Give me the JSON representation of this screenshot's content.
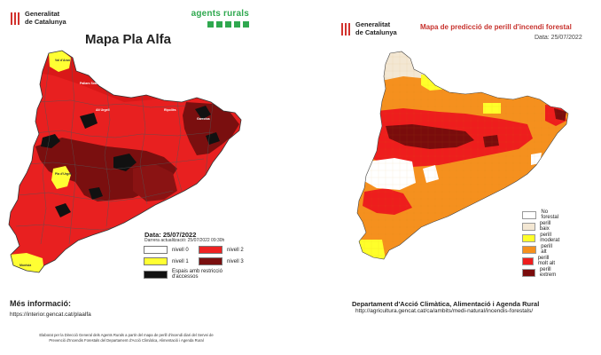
{
  "left": {
    "logo": {
      "line1": "Generalitat",
      "line2": "de Catalunya"
    },
    "agents_rurals": "agents rurals",
    "title": "Mapa Pla Alfa",
    "date": "Data: 25/07/2022",
    "updated": "Darrera actualització: 25/07/2022 09:30h",
    "legend": [
      {
        "label": "nivell 0",
        "color": "#ffffff"
      },
      {
        "label": "nivell 2",
        "color": "#ee2222"
      },
      {
        "label": "nivell 1",
        "color": "#ffff33"
      },
      {
        "label": "nivell 3",
        "color": "#7a0f0f"
      },
      {
        "label": "Espais amb restricció d'accessos",
        "color": "#111111"
      }
    ],
    "more_info": "Més informació:",
    "url": "https://interior.gencat.cat/plaalfa",
    "footer_line1": "Elaborat per la Direcció General dels Agents Rurals a partir del mapa de perill d'incendi diari del Servei de",
    "footer_line2": "Prevenció d'Incendis Forestals del Departament d'Acció Climàtica, Alimentació i Agenda Rural",
    "map_labels": [
      "Val d'Aran",
      "Pallars Sobirà",
      "Alt Urgell",
      "Pla d'Urgell",
      "Montsià",
      "Ripollès",
      "Garrotxa"
    ]
  },
  "right": {
    "logo": {
      "line1": "Generalitat",
      "line2": "de Catalunya"
    },
    "title": "Mapa de predicció de perill d'incendi forestal",
    "date": "Data: 25/07/2022",
    "legend": [
      {
        "label": "No forestal",
        "color": "#ffffff"
      },
      {
        "label": "perill baix",
        "color": "#f3e7d3"
      },
      {
        "label": "perill moderat",
        "color": "#ffff2a"
      },
      {
        "label": "perill alt",
        "color": "#f5901e"
      },
      {
        "label": "perill molt alt",
        "color": "#ee1d1d"
      },
      {
        "label": "perill extrem",
        "color": "#7a0c0c"
      }
    ],
    "department": "Departament d'Acció Climàtica, Alimentació i Agenda Rural",
    "url": "http://agricultura.gencat.cat/ca/ambits/medi-natural/incendis-forestals/"
  }
}
